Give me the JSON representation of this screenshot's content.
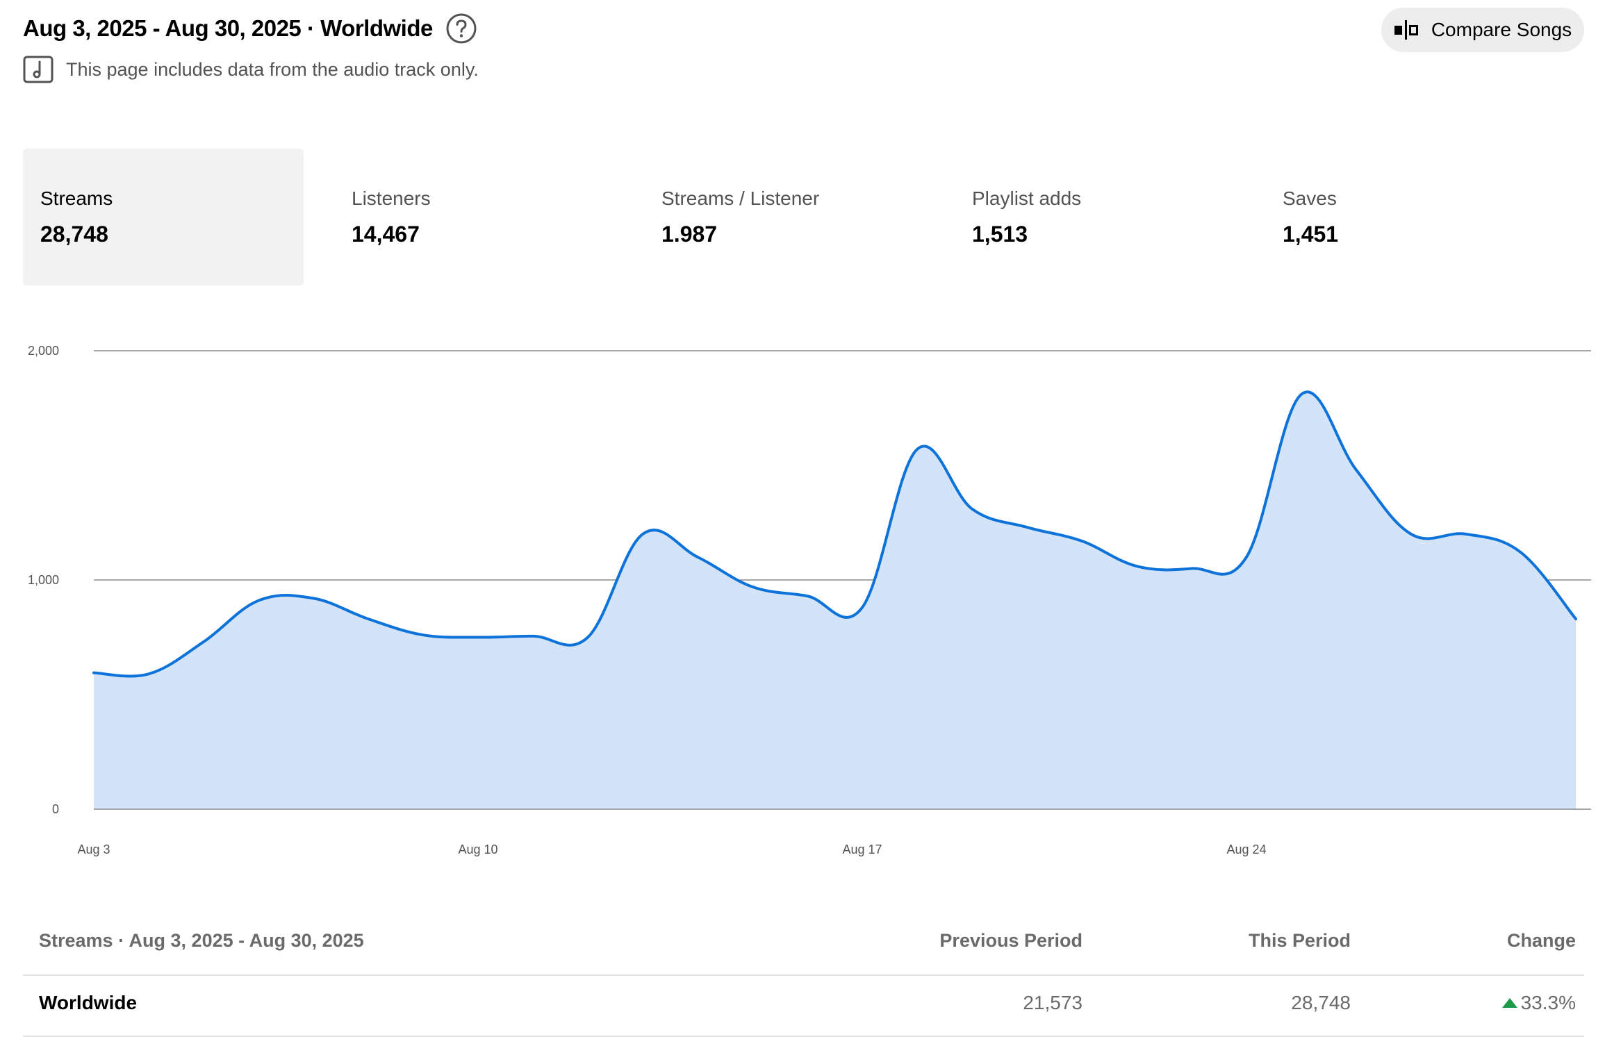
{
  "header": {
    "title": "Aug 3, 2025 - Aug 30, 2025 · Worldwide",
    "note": "This page includes data from the audio track only.",
    "compare_label": "Compare Songs"
  },
  "metrics": [
    {
      "label": "Streams",
      "value": "28,748",
      "selected": true
    },
    {
      "label": "Listeners",
      "value": "14,467"
    },
    {
      "label": "Streams / Listener",
      "value": "1.987"
    },
    {
      "label": "Playlist adds",
      "value": "1,513"
    },
    {
      "label": "Saves",
      "value": "1,451"
    }
  ],
  "chart_data": {
    "type": "area",
    "series": [
      {
        "values": [
          595,
          590,
          730,
          910,
          920,
          830,
          760,
          750,
          755,
          750,
          1200,
          1100,
          970,
          930,
          880,
          1570,
          1310,
          1230,
          1170,
          1060,
          1050,
          1100,
          1810,
          1480,
          1200,
          1200,
          1120,
          830
        ]
      }
    ],
    "x": [
      "Aug 3",
      "Aug 4",
      "Aug 5",
      "Aug 6",
      "Aug 7",
      "Aug 8",
      "Aug 9",
      "Aug 10",
      "Aug 11",
      "Aug 12",
      "Aug 13",
      "Aug 14",
      "Aug 15",
      "Aug 16",
      "Aug 17",
      "Aug 18",
      "Aug 19",
      "Aug 20",
      "Aug 21",
      "Aug 22",
      "Aug 23",
      "Aug 24",
      "Aug 25",
      "Aug 26",
      "Aug 27",
      "Aug 28",
      "Aug 29",
      "Aug 30"
    ],
    "x_ticks": [
      "Aug 3",
      "Aug 10",
      "Aug 17",
      "Aug 24"
    ],
    "y_ticks": [
      "0",
      "1,000",
      "2,000"
    ],
    "ylim": [
      0,
      2000
    ],
    "grid": true,
    "colors": {
      "line": "#0d72d9",
      "fill": "#d3e4f8"
    }
  },
  "table": {
    "title": "Streams · Aug 3, 2025 - Aug 30, 2025",
    "columns": [
      "Previous Period",
      "This Period",
      "Change"
    ],
    "rows": [
      {
        "region": "Worldwide",
        "previous": "21,573",
        "current": "28,748",
        "change": "33.3%",
        "trend": "up"
      }
    ]
  }
}
